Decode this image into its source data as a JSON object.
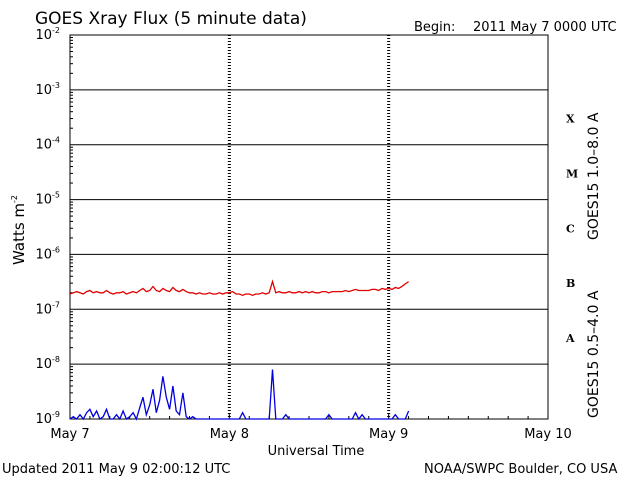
{
  "header": {
    "title": "GOES Xray Flux (5 minute data)",
    "begin_label": "Begin:",
    "begin_date": "2011 May 7 0000 UTC"
  },
  "footer": {
    "updated": "Updated 2011 May  9 02:00:12 UTC",
    "credit": "NOAA/SWPC Boulder, CO USA"
  },
  "chart_data": {
    "type": "line",
    "title": "GOES Xray Flux (5 minute data)",
    "xlabel": "Universal Time",
    "ylabel": "Watts m",
    "ylabel_exp": "-2",
    "yscale": "log",
    "ylim": [
      1e-09,
      0.01
    ],
    "xlim": [
      0,
      72
    ],
    "x_unit": "hours since 2011 May 7 0000 UTC",
    "x_ticks": [
      {
        "x": 0,
        "label": "May 7"
      },
      {
        "x": 24,
        "label": "May 8"
      },
      {
        "x": 48,
        "label": "May 9"
      },
      {
        "x": 72,
        "label": "May 10"
      }
    ],
    "y_ticks": [
      {
        "value": 0.01,
        "base": "10",
        "exp": "-2"
      },
      {
        "value": 0.001,
        "base": "10",
        "exp": "-3"
      },
      {
        "value": 0.0001,
        "base": "10",
        "exp": "-4"
      },
      {
        "value": 1e-05,
        "base": "10",
        "exp": "-5"
      },
      {
        "value": 1e-06,
        "base": "10",
        "exp": "-6"
      },
      {
        "value": 1e-07,
        "base": "10",
        "exp": "-7"
      },
      {
        "value": 1e-08,
        "base": "10",
        "exp": "-8"
      },
      {
        "value": 1e-09,
        "base": "10",
        "exp": "-9"
      }
    ],
    "flare_classes": [
      {
        "label": "X",
        "value": 0.0003
      },
      {
        "label": "M",
        "value": 3e-05
      },
      {
        "label": "C",
        "value": 3e-06
      },
      {
        "label": "B",
        "value": 3e-07
      },
      {
        "label": "A",
        "value": 3e-08
      }
    ],
    "grid": true,
    "series": [
      {
        "name": "GOES15 1.0–8.0 A",
        "color": "#e00000",
        "x": [
          0,
          0.5,
          1,
          1.5,
          2,
          2.5,
          3,
          3.5,
          4,
          4.5,
          5,
          5.5,
          6,
          6.5,
          7,
          7.5,
          8,
          8.5,
          9,
          9.5,
          10,
          10.5,
          11,
          11.5,
          12,
          12.5,
          13,
          13.5,
          14,
          14.5,
          15,
          15.5,
          16,
          16.5,
          17,
          17.5,
          18,
          18.5,
          19,
          19.5,
          20,
          20.5,
          21,
          21.5,
          22,
          22.5,
          23,
          23.5,
          24,
          24.5,
          25,
          25.5,
          26,
          26.5,
          27,
          27.5,
          28,
          28.5,
          29,
          29.5,
          30,
          30.5,
          31,
          31.5,
          32,
          32.5,
          33,
          33.5,
          34,
          34.5,
          35,
          35.5,
          36,
          36.5,
          37,
          37.5,
          38,
          38.5,
          39,
          39.5,
          40,
          40.5,
          41,
          41.5,
          42,
          42.5,
          43,
          43.5,
          44,
          44.5,
          45,
          45.5,
          46,
          46.5,
          47,
          47.5,
          48,
          48.5,
          49,
          49.5,
          50,
          50.5,
          51
        ],
        "y": [
          1.9e-07,
          2e-07,
          2.1e-07,
          2e-07,
          1.9e-07,
          2.1e-07,
          2.2e-07,
          2e-07,
          2.1e-07,
          2e-07,
          2e-07,
          2.2e-07,
          2e-07,
          1.9e-07,
          2e-07,
          2e-07,
          2.1e-07,
          1.9e-07,
          2e-07,
          2.1e-07,
          2e-07,
          2.2e-07,
          2.4e-07,
          2.1e-07,
          2.2e-07,
          2.6e-07,
          2.2e-07,
          2.1e-07,
          2.4e-07,
          2.2e-07,
          2.1e-07,
          2.5e-07,
          2.2e-07,
          2.1e-07,
          2.3e-07,
          2.1e-07,
          2e-07,
          2e-07,
          1.9e-07,
          2e-07,
          1.9e-07,
          1.9e-07,
          2e-07,
          1.9e-07,
          1.9e-07,
          2e-07,
          1.9e-07,
          2e-07,
          2e-07,
          2.1e-07,
          1.9e-07,
          1.9e-07,
          1.8e-07,
          1.9e-07,
          1.9e-07,
          1.8e-07,
          1.9e-07,
          1.9e-07,
          2e-07,
          1.9e-07,
          2e-07,
          3.2e-07,
          2e-07,
          2.1e-07,
          2e-07,
          2e-07,
          2.1e-07,
          2e-07,
          2e-07,
          2.1e-07,
          2e-07,
          2.1e-07,
          2e-07,
          2.1e-07,
          2e-07,
          2e-07,
          2.1e-07,
          2.1e-07,
          2e-07,
          2.1e-07,
          2.1e-07,
          2.1e-07,
          2.1e-07,
          2.2e-07,
          2.1e-07,
          2.2e-07,
          2.3e-07,
          2.2e-07,
          2.2e-07,
          2.2e-07,
          2.2e-07,
          2.3e-07,
          2.3e-07,
          2.2e-07,
          2.4e-07,
          2.3e-07,
          2.4e-07,
          2.3e-07,
          2.5e-07,
          2.4e-07,
          2.6e-07,
          2.9e-07,
          3.2e-07
        ]
      },
      {
        "name": "GOES15 0.5–4.0 A",
        "color": "#0000e0",
        "x": [
          0,
          0.5,
          1,
          1.5,
          2,
          2.5,
          3,
          3.5,
          4,
          4.5,
          5,
          5.5,
          6,
          6.5,
          7,
          7.5,
          8,
          8.5,
          9,
          9.5,
          10,
          10.5,
          11,
          11.5,
          12,
          12.5,
          13,
          13.5,
          14,
          14.5,
          15,
          15.5,
          16,
          16.5,
          17,
          17.5,
          18,
          18.5,
          19,
          19.5,
          20,
          20.5,
          21,
          21.5,
          22,
          22.5,
          23,
          23.5,
          24,
          24.5,
          25,
          25.5,
          26,
          26.5,
          27,
          27.5,
          28,
          28.5,
          29,
          29.5,
          30,
          30.5,
          31,
          31.5,
          32,
          32.5,
          33,
          33.5,
          34,
          34.5,
          35,
          35.5,
          36,
          36.5,
          37,
          37.5,
          38,
          38.5,
          39,
          39.5,
          40,
          40.5,
          41,
          41.5,
          42,
          42.5,
          43,
          43.5,
          44,
          44.5,
          45,
          45.5,
          46,
          46.5,
          47,
          47.5,
          48,
          48.5,
          49,
          49.5,
          50,
          50.5,
          51
        ],
        "y": [
          1e-09,
          1.1e-09,
          1e-09,
          1.2e-09,
          1e-09,
          1.3e-09,
          1.5e-09,
          1.1e-09,
          1.4e-09,
          1e-09,
          1.1e-09,
          1.5e-09,
          1e-09,
          1e-09,
          1.2e-09,
          1e-09,
          1.4e-09,
          1e-09,
          1.1e-09,
          1.3e-09,
          1e-09,
          1.6e-09,
          2.5e-09,
          1.2e-09,
          1.8e-09,
          3.5e-09,
          1.3e-09,
          2.2e-09,
          6e-09,
          2.5e-09,
          1.5e-09,
          4e-09,
          1.4e-09,
          1.2e-09,
          3e-09,
          1.1e-09,
          1e-09,
          1.1e-09,
          1e-09,
          1e-09,
          1e-09,
          1e-09,
          1e-09,
          1e-09,
          1e-09,
          1e-09,
          1e-09,
          1e-09,
          1e-09,
          1e-09,
          1e-09,
          1e-09,
          1.3e-09,
          1e-09,
          1e-09,
          1e-09,
          1e-09,
          1e-09,
          1e-09,
          1e-09,
          1e-09,
          8e-09,
          1e-09,
          1e-09,
          1e-09,
          1.2e-09,
          1e-09,
          1e-09,
          1e-09,
          1e-09,
          1e-09,
          1e-09,
          1e-09,
          1e-09,
          1e-09,
          1e-09,
          1e-09,
          1e-09,
          1.2e-09,
          1e-09,
          1e-09,
          1e-09,
          1e-09,
          1e-09,
          1e-09,
          1e-09,
          1.3e-09,
          1e-09,
          1.2e-09,
          1e-09,
          1e-09,
          1e-09,
          1e-09,
          1e-09,
          1e-09,
          1e-09,
          1e-09,
          1e-09,
          1.2e-09,
          1e-09,
          1e-09,
          1e-09,
          1.4e-09
        ]
      }
    ]
  }
}
